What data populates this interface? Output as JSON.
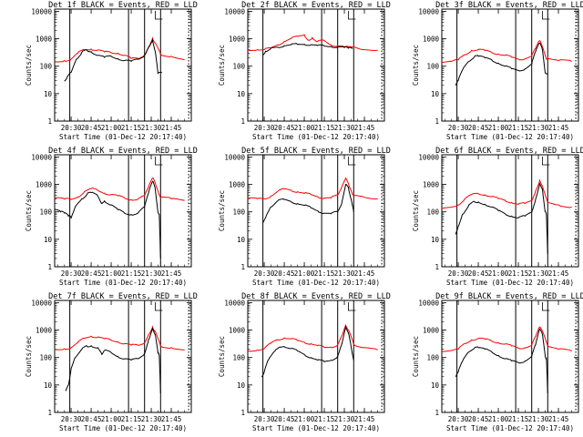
{
  "figure": {
    "background": "#ffffff"
  },
  "chart_data": {
    "type": "line",
    "yscale": "log",
    "ylim": [
      1,
      12000
    ],
    "xlim": [
      "20:17:40",
      "22:00:00"
    ],
    "xticks": [
      "20:30",
      "20:45",
      "21:00",
      "21:15",
      "21:30",
      "21:45"
    ],
    "yticks": [
      "1",
      "10",
      "100",
      "1000",
      "10000"
    ],
    "xlabel": "Start Time (01-Dec-12 20:17:40)",
    "ylabel": "Counts/sec",
    "series_colors": {
      "events": "#000000",
      "lld": "#ff0000"
    },
    "grid": false,
    "panels": [
      {
        "title": "Det 1f BLACK = Events, RED = LLD",
        "events": {
          "x": [
            "20:25",
            "20:27",
            "20:30",
            "20:34",
            "20:38",
            "20:42",
            "20:45",
            "20:50",
            "20:55",
            "21:00",
            "21:05",
            "21:10",
            "21:15",
            "21:20",
            "21:25",
            "21:28",
            "21:31",
            "21:33",
            "21:35",
            "21:38"
          ],
          "y": [
            30,
            40,
            60,
            180,
            320,
            380,
            340,
            250,
            210,
            230,
            190,
            160,
            150,
            180,
            250,
            500,
            900,
            350,
            55,
            60
          ]
        },
        "lld": {
          "x": [
            "20:17:40",
            "20:25",
            "20:30",
            "20:35",
            "20:40",
            "20:45",
            "20:50",
            "20:55",
            "21:00",
            "21:05",
            "21:10",
            "21:15",
            "21:20",
            "21:25",
            "21:28",
            "21:31",
            "21:33",
            "21:37",
            "21:45",
            "21:55"
          ],
          "y": [
            150,
            160,
            180,
            300,
            400,
            420,
            390,
            330,
            310,
            300,
            250,
            190,
            190,
            260,
            500,
            1050,
            700,
            270,
            230,
            170
          ]
        }
      },
      {
        "title": "Det 2f BLACK = Events, RED = LLD",
        "events": {
          "x": [
            "20:29",
            "20:31",
            "20:35",
            "20:40",
            "20:45",
            "20:50",
            "20:55",
            "21:00",
            "21:05",
            "21:10",
            "21:15",
            "21:20",
            "21:25",
            "21:30",
            "21:33",
            "21:36"
          ],
          "y": [
            250,
            350,
            450,
            500,
            560,
            600,
            620,
            630,
            610,
            560,
            540,
            530,
            500,
            480,
            450,
            430
          ]
        },
        "lld": {
          "x": [
            "20:17:40",
            "20:25",
            "20:30",
            "20:35",
            "20:40",
            "20:45",
            "20:50",
            "20:55",
            "21:00",
            "21:03",
            "21:06",
            "21:10",
            "21:15",
            "21:20",
            "21:25",
            "21:30",
            "21:40",
            "21:55"
          ],
          "y": [
            400,
            400,
            400,
            450,
            600,
            800,
            1000,
            1200,
            1400,
            900,
            1100,
            800,
            850,
            600,
            550,
            500,
            450,
            380
          ]
        }
      },
      {
        "title": "Det 3f BLACK = Events, RED = LLD",
        "events": {
          "x": [
            "20:28",
            "20:30",
            "20:33",
            "20:38",
            "20:42",
            "20:45",
            "20:50",
            "20:55",
            "21:00",
            "21:05",
            "21:10",
            "21:15",
            "21:20",
            "21:25",
            "21:28",
            "21:31",
            "21:33",
            "21:35",
            "21:37"
          ],
          "y": [
            20,
            30,
            70,
            150,
            220,
            230,
            200,
            170,
            130,
            100,
            80,
            70,
            80,
            120,
            350,
            700,
            400,
            60,
            55
          ]
        },
        "lld": {
          "x": [
            "20:17:40",
            "20:25",
            "20:30",
            "20:35",
            "20:40",
            "20:45",
            "20:50",
            "20:55",
            "21:00",
            "21:05",
            "21:10",
            "21:15",
            "21:20",
            "21:25",
            "21:28",
            "21:31",
            "21:33",
            "21:36",
            "21:45",
            "21:55"
          ],
          "y": [
            140,
            150,
            170,
            260,
            380,
            400,
            370,
            320,
            280,
            250,
            210,
            180,
            190,
            230,
            450,
            850,
            500,
            180,
            160,
            150
          ]
        }
      },
      {
        "title": "Det 4f BLACK = Events, RED = LLD",
        "events": {
          "x": [
            "20:17:40",
            "20:22",
            "20:25",
            "20:28",
            "20:30",
            "20:33",
            "20:38",
            "20:42",
            "20:45",
            "20:50",
            "20:53",
            "20:55",
            "21:00",
            "21:05",
            "21:10",
            "21:15",
            "21:20",
            "21:25",
            "21:28",
            "21:31",
            "21:33",
            "21:35",
            "21:36",
            "21:37"
          ],
          "y": [
            120,
            100,
            90,
            70,
            60,
            150,
            300,
            450,
            500,
            380,
            200,
            250,
            180,
            120,
            90,
            80,
            90,
            150,
            500,
            1300,
            700,
            100,
            80,
            2
          ]
        },
        "lld": {
          "x": [
            "20:17:40",
            "20:25",
            "20:30",
            "20:35",
            "20:40",
            "20:45",
            "20:50",
            "20:55",
            "21:00",
            "21:05",
            "21:10",
            "21:15",
            "21:20",
            "21:25",
            "21:28",
            "21:31",
            "21:33",
            "21:37",
            "21:45",
            "21:55"
          ],
          "y": [
            320,
            290,
            280,
            350,
            550,
            700,
            600,
            480,
            430,
            380,
            320,
            280,
            290,
            380,
            800,
            1700,
            1100,
            330,
            300,
            260
          ]
        }
      },
      {
        "title": "Det 5f BLACK = Events, RED = LLD",
        "events": {
          "x": [
            "20:29",
            "20:31",
            "20:35",
            "20:40",
            "20:45",
            "20:50",
            "20:55",
            "21:00",
            "21:05",
            "21:10",
            "21:15",
            "21:20",
            "21:25",
            "21:28",
            "21:31",
            "21:33",
            "21:35",
            "21:37"
          ],
          "y": [
            40,
            60,
            150,
            250,
            280,
            240,
            200,
            170,
            140,
            110,
            90,
            85,
            100,
            200,
            1000,
            800,
            300,
            100
          ]
        },
        "lld": {
          "x": [
            "20:17:40",
            "20:25",
            "20:30",
            "20:35",
            "20:40",
            "20:45",
            "20:50",
            "20:55",
            "21:00",
            "21:05",
            "21:10",
            "21:15",
            "21:20",
            "21:25",
            "21:28",
            "21:31",
            "21:33",
            "21:37",
            "21:45",
            "21:55"
          ],
          "y": [
            300,
            300,
            300,
            380,
            550,
            680,
            620,
            540,
            470,
            420,
            360,
            320,
            320,
            400,
            800,
            1700,
            1100,
            380,
            340,
            300
          ]
        }
      },
      {
        "title": "Det 6f BLACK = Events, RED = LLD",
        "events": {
          "x": [
            "20:28",
            "20:30",
            "20:33",
            "20:38",
            "20:42",
            "20:45",
            "20:50",
            "20:55",
            "21:00",
            "21:05",
            "21:10",
            "21:15",
            "21:20",
            "21:25",
            "21:28",
            "21:31",
            "21:33",
            "21:35",
            "21:36",
            "21:37"
          ],
          "y": [
            15,
            30,
            80,
            180,
            240,
            230,
            190,
            150,
            110,
            85,
            70,
            60,
            70,
            100,
            300,
            1100,
            700,
            100,
            80,
            3
          ]
        },
        "lld": {
          "x": [
            "20:17:40",
            "20:25",
            "20:30",
            "20:35",
            "20:40",
            "20:45",
            "20:50",
            "20:55",
            "21:00",
            "21:05",
            "21:10",
            "21:15",
            "21:20",
            "21:25",
            "21:28",
            "21:31",
            "21:33",
            "21:37",
            "21:45",
            "21:55"
          ],
          "y": [
            130,
            150,
            180,
            300,
            420,
            460,
            420,
            360,
            300,
            260,
            220,
            190,
            200,
            260,
            600,
            1400,
            900,
            220,
            180,
            150
          ]
        }
      },
      {
        "title": "Det 7f BLACK = Events, RED = LLD",
        "events": {
          "x": [
            "20:26",
            "20:28",
            "20:30",
            "20:33",
            "20:38",
            "20:42",
            "20:45",
            "20:50",
            "20:53",
            "20:55",
            "21:00",
            "21:05",
            "21:10",
            "21:15",
            "21:20",
            "21:25",
            "21:28",
            "21:31",
            "21:33",
            "21:35",
            "21:36",
            "21:37"
          ],
          "y": [
            6,
            10,
            40,
            100,
            200,
            260,
            270,
            230,
            130,
            180,
            150,
            110,
            90,
            80,
            90,
            140,
            450,
            1200,
            700,
            150,
            120,
            5
          ]
        },
        "lld": {
          "x": [
            "20:17:40",
            "20:25",
            "20:30",
            "20:35",
            "20:40",
            "20:45",
            "20:50",
            "20:55",
            "21:00",
            "21:05",
            "21:10",
            "21:15",
            "21:20",
            "21:25",
            "21:28",
            "21:31",
            "21:33",
            "21:37",
            "21:45",
            "21:55"
          ],
          "y": [
            200,
            210,
            230,
            350,
            500,
            600,
            560,
            480,
            420,
            380,
            320,
            280,
            280,
            350,
            700,
            1300,
            900,
            260,
            230,
            190
          ]
        }
      },
      {
        "title": "Det 8f BLACK = Events, RED = LLD",
        "events": {
          "x": [
            "20:28",
            "20:30",
            "20:33",
            "20:38",
            "20:42",
            "20:45",
            "20:50",
            "20:55",
            "21:00",
            "21:05",
            "21:10",
            "21:15",
            "21:20",
            "21:25",
            "21:28",
            "21:31",
            "21:33",
            "21:35",
            "21:37"
          ],
          "y": [
            20,
            30,
            80,
            170,
            240,
            250,
            210,
            170,
            130,
            100,
            80,
            70,
            80,
            110,
            300,
            1300,
            800,
            250,
            80
          ]
        },
        "lld": {
          "x": [
            "20:17:40",
            "20:25",
            "20:30",
            "20:35",
            "20:40",
            "20:45",
            "20:50",
            "20:55",
            "21:00",
            "21:05",
            "21:10",
            "21:15",
            "21:20",
            "21:25",
            "21:28",
            "21:31",
            "21:33",
            "21:37",
            "21:45",
            "21:55"
          ],
          "y": [
            180,
            190,
            210,
            330,
            450,
            520,
            480,
            410,
            360,
            320,
            270,
            230,
            240,
            290,
            600,
            1500,
            1000,
            300,
            230,
            190
          ]
        }
      },
      {
        "title": "Det 9f BLACK = Events, RED = LLD",
        "events": {
          "x": [
            "20:28",
            "20:30",
            "20:33",
            "20:38",
            "20:42",
            "20:45",
            "20:50",
            "20:55",
            "21:00",
            "21:05",
            "21:10",
            "21:15",
            "21:20",
            "21:25",
            "21:28",
            "21:31",
            "21:33",
            "21:35",
            "21:36",
            "21:37"
          ],
          "y": [
            20,
            30,
            70,
            160,
            220,
            230,
            200,
            160,
            120,
            90,
            75,
            65,
            75,
            110,
            300,
            1100,
            700,
            120,
            90,
            5
          ]
        },
        "lld": {
          "x": [
            "20:17:40",
            "20:25",
            "20:30",
            "20:35",
            "20:40",
            "20:45",
            "20:50",
            "20:55",
            "21:00",
            "21:05",
            "21:10",
            "21:15",
            "21:20",
            "21:25",
            "21:28",
            "21:31",
            "21:33",
            "21:37",
            "21:45",
            "21:55"
          ],
          "y": [
            170,
            180,
            200,
            320,
            440,
            500,
            460,
            400,
            350,
            310,
            260,
            220,
            230,
            280,
            580,
            1300,
            900,
            260,
            200,
            170
          ]
        }
      }
    ],
    "vertical_lines": {
      "solid": [
        "20:29",
        "21:13",
        "21:25",
        "21:37"
      ],
      "dotted": [
        "21:58"
      ]
    },
    "legend_bracket_at": "21:33"
  }
}
